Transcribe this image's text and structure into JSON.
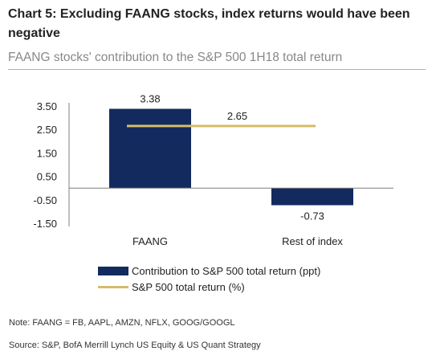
{
  "title": "Chart 5: Excluding FAANG stocks, index returns would have been negative",
  "subtitle": "FAANG stocks' contribution to the S&P 500 1H18 total return",
  "colors": {
    "bar": "#132a5e",
    "line": "#d4bc6a",
    "axis": "#7f7f7f"
  },
  "chart_data": {
    "type": "bar",
    "categories": [
      "FAANG",
      "Rest of index"
    ],
    "series": [
      {
        "name": "Contribution to S&P 500 total return (ppt)",
        "type": "bar",
        "values": [
          3.38,
          -0.73
        ],
        "labels": [
          "3.38",
          "-0.73"
        ]
      },
      {
        "name": "S&P 500 total return (%)",
        "type": "line",
        "value": 2.65,
        "label": "2.65"
      }
    ],
    "yticks": [
      "3.50",
      "2.50",
      "1.50",
      "0.50",
      "-0.50",
      "-1.50"
    ],
    "ytick_values": [
      3.5,
      2.5,
      1.5,
      0.5,
      -0.5,
      -1.5
    ],
    "ylim": [
      -1.5,
      3.5
    ],
    "legend_position": "bottom",
    "grid": false
  },
  "legend": [
    {
      "label": "Contribution to S&P 500 total return (ppt)",
      "kind": "bar"
    },
    {
      "label": "S&P 500 total return (%)",
      "kind": "line"
    }
  ],
  "note": "Note: FAANG = FB, AAPL, AMZN, NFLX, GOOG/GOOGL",
  "source": "Source: S&P, BofA Merrill Lynch US Equity & US Quant Strategy"
}
